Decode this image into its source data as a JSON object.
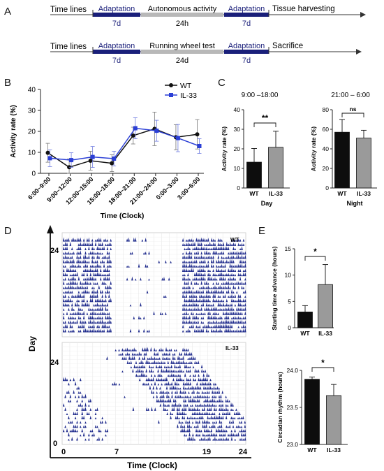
{
  "panels": {
    "A": "A",
    "B": "B",
    "C": "C",
    "D": "D",
    "E": "E"
  },
  "colors": {
    "wt": "#111111",
    "il33": "#2b3fd6",
    "navy": "#1a1f7a",
    "gray_bar": "#8c8c8c",
    "timeline_gray": "#b8b8b8",
    "actogram": "#1e2a8c"
  },
  "timeline1": {
    "label": "Time lines",
    "segments": [
      {
        "top": "Adaptation",
        "bottom": "7d",
        "style": "navy"
      },
      {
        "top": "Autonomous activity",
        "bottom": "24h",
        "style": "gray"
      },
      {
        "top": "Adaptation",
        "bottom": "7d",
        "style": "navy"
      }
    ],
    "end_label": "Tissue harvesting"
  },
  "timeline2": {
    "label": "Time lines",
    "segments": [
      {
        "top": "Adaptation",
        "bottom": "7d",
        "style": "navy"
      },
      {
        "top": "Running wheel test",
        "bottom": "24d",
        "style": "gray"
      },
      {
        "top": "Adaptation",
        "bottom": "7d",
        "style": "navy"
      }
    ],
    "end_label": "Sacrifice"
  },
  "chart_data": [
    {
      "panel": "B",
      "type": "line",
      "categories": [
        "6:00~9:00",
        "9:00~12:00",
        "12:00~15:00",
        "15:00~18:00",
        "18:00~21:00",
        "21:00~24:00",
        "0:00~3:00",
        "3:00~6:00"
      ],
      "series": [
        {
          "name": "WT",
          "values": [
            9.8,
            2.9,
            6.0,
            4.8,
            18.0,
            21.2,
            17.2,
            18.6
          ],
          "err": [
            4.5,
            4.0,
            4.5,
            4.0,
            4.0,
            8.0,
            6.0,
            7.0
          ],
          "marker": "circle"
        },
        {
          "name": "IL-33",
          "values": [
            7.2,
            6.3,
            7.8,
            7.0,
            21.5,
            20.3,
            16.8,
            13.0
          ],
          "err": [
            4.0,
            3.5,
            5.0,
            3.5,
            5.0,
            5.0,
            6.5,
            3.5
          ],
          "marker": "square"
        }
      ],
      "ylabel": "Activity rate (%)",
      "xlabel": "Time (Clock)",
      "ylim": [
        0,
        40
      ],
      "yticks": [
        "0",
        "10",
        "20",
        "30",
        "40"
      ],
      "legend": "top-right"
    },
    {
      "panel": "C-day",
      "type": "bar",
      "title": "9:00 –18:00",
      "categories": [
        "WT",
        "IL-33"
      ],
      "values": [
        13.2,
        20.8
      ],
      "err": [
        7.0,
        8.2
      ],
      "ylabel": "Activity rate (%)",
      "xlabel": "Day",
      "ylim": [
        0,
        40
      ],
      "yticks": [
        "0",
        "10",
        "20",
        "30",
        "40"
      ],
      "sig": "**"
    },
    {
      "panel": "C-night",
      "type": "bar",
      "title": "21:00 – 6:00",
      "categories": [
        "WT",
        "IL-33"
      ],
      "values": [
        57.0,
        51.0
      ],
      "err": [
        13.0,
        8.0
      ],
      "ylabel": "Activity rate (%)",
      "xlabel": "Night",
      "ylim": [
        0,
        80
      ],
      "yticks": [
        "0",
        "20",
        "40",
        "60",
        "80"
      ],
      "sig": "ns"
    },
    {
      "panel": "E-top",
      "type": "bar",
      "categories": [
        "WT",
        "IL-33"
      ],
      "values": [
        3.0,
        8.2
      ],
      "err": [
        1.2,
        3.8
      ],
      "ylabel": "Starting time advance (hours)",
      "ylim": [
        0,
        15
      ],
      "yticks": [
        "0",
        "5",
        "10",
        "15"
      ],
      "sig": "*"
    },
    {
      "panel": "E-bottom",
      "type": "bar",
      "categories": [
        "WT",
        "IL-33"
      ],
      "values": [
        23.88,
        23.66
      ],
      "err": [
        0.03,
        0.15
      ],
      "ylabel": "Circadian rhythm (hours)",
      "ylim": [
        23.0,
        24.0
      ],
      "yticks": [
        "23.0",
        "23.5",
        "24.0"
      ],
      "sig": "*"
    }
  ],
  "actogram": {
    "ylabel": "Day",
    "xlabel": "Time (Clock)",
    "xticks": [
      "0",
      "7",
      "19",
      "24"
    ],
    "y_top_label": "24",
    "y_mid_label": "24",
    "y_zero_label": "0",
    "wt_label": "WT",
    "il33_label": "IL-33"
  }
}
